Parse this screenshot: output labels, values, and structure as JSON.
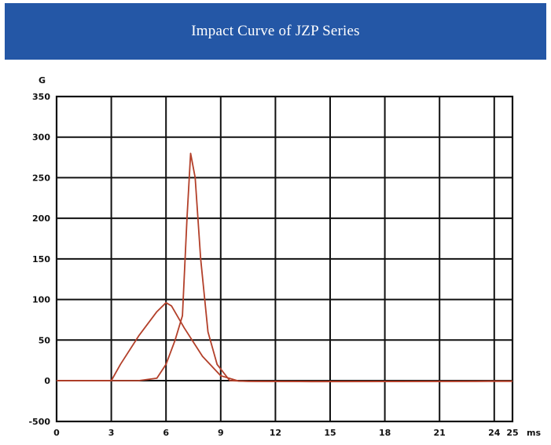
{
  "banner": {
    "title": "Impact Curve of JZP Series"
  },
  "colors": {
    "banner": "#2457a6",
    "curve": "#b3402a",
    "grid": "#111111"
  },
  "chart_data": {
    "type": "line",
    "title": "Impact Curve of JZP Series",
    "xlabel": "ms",
    "ylabel": "G",
    "xlim": [
      0,
      25
    ],
    "y_ticks_display": [
      "350",
      "300",
      "250",
      "200",
      "150",
      "100",
      "50",
      "0",
      "-500"
    ],
    "x_ticks": [
      0,
      3,
      6,
      9,
      12,
      15,
      18,
      21,
      24,
      25
    ],
    "grid": true,
    "legend": "none",
    "series": [
      {
        "points": [
          [
            0,
            0
          ],
          [
            3,
            0
          ],
          [
            3.5,
            20
          ],
          [
            4.5,
            55
          ],
          [
            5.5,
            85
          ],
          [
            6,
            96
          ],
          [
            6.3,
            92
          ],
          [
            7,
            65
          ],
          [
            8,
            30
          ],
          [
            9,
            6
          ],
          [
            10,
            -6
          ],
          [
            11,
            -8
          ],
          [
            14,
            -10
          ],
          [
            18,
            -9
          ],
          [
            21,
            -8
          ],
          [
            25,
            -8
          ]
        ]
      },
      {
        "points": [
          [
            0,
            0
          ],
          [
            4.5,
            0
          ],
          [
            5.5,
            3
          ],
          [
            6,
            20
          ],
          [
            6.5,
            50
          ],
          [
            6.9,
            80
          ],
          [
            7.15,
            200
          ],
          [
            7.35,
            280
          ],
          [
            7.6,
            250
          ],
          [
            7.9,
            150
          ],
          [
            8.3,
            60
          ],
          [
            8.8,
            20
          ],
          [
            9.5,
            0
          ],
          [
            10.5,
            -8
          ],
          [
            12,
            -10
          ],
          [
            14,
            -12
          ],
          [
            18,
            -11
          ],
          [
            21,
            -10
          ],
          [
            23,
            -8
          ],
          [
            24,
            -5
          ],
          [
            25,
            -5
          ]
        ]
      }
    ]
  }
}
